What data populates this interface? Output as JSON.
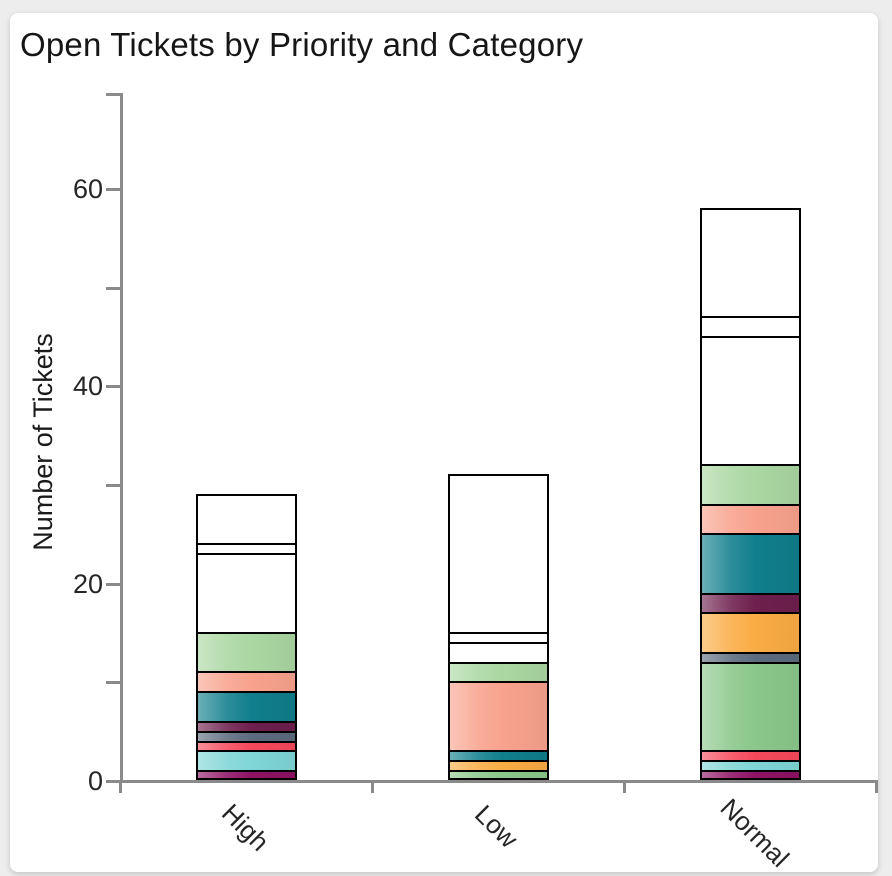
{
  "page": {
    "background_color": "#ededed",
    "card_background": "#ffffff",
    "axis_color": "#8a8a8a",
    "bar_border_color": "#000000",
    "text_color": "#1a1a1a"
  },
  "chart_data": {
    "type": "bar",
    "stacked": true,
    "title": "Open Tickets by Priority and Category",
    "xlabel": "",
    "ylabel": "Number of Tickets",
    "ylim": [
      0,
      68
    ],
    "yticks_major": [
      0,
      20,
      40,
      60
    ],
    "yticks_minor": [
      10,
      30,
      50
    ],
    "grid": false,
    "legend": "none",
    "categories": [
      "High",
      "Low",
      "Normal"
    ],
    "totals": [
      29,
      31,
      58
    ],
    "palette": {
      "dark-magenta": "#8E1263",
      "light-cyan": "#7FD5D6",
      "red": "#F5495B",
      "medium-green": "#8AC78A",
      "slate-gray": "#5C6C7E",
      "orange": "#FAAC44",
      "dark-maroon": "#6E1F4D",
      "teal": "#107E8C",
      "salmon": "#F8A28D",
      "light-green": "#AAD7A2",
      "white": "#FFFFFF"
    },
    "bars": [
      {
        "category": "High",
        "total": 29,
        "segments": [
          {
            "color": "dark-magenta",
            "value": 1
          },
          {
            "color": "light-cyan",
            "value": 2
          },
          {
            "color": "red",
            "value": 1
          },
          {
            "color": "slate-gray",
            "value": 1
          },
          {
            "color": "dark-maroon",
            "value": 1
          },
          {
            "color": "teal",
            "value": 3
          },
          {
            "color": "salmon",
            "value": 2
          },
          {
            "color": "light-green",
            "value": 4
          },
          {
            "color": "white",
            "value": 8
          },
          {
            "color": "white",
            "value": 1
          },
          {
            "color": "white",
            "value": 5
          }
        ]
      },
      {
        "category": "Low",
        "total": 31,
        "segments": [
          {
            "color": "medium-green",
            "value": 1
          },
          {
            "color": "orange",
            "value": 1
          },
          {
            "color": "teal",
            "value": 1
          },
          {
            "color": "salmon",
            "value": 7
          },
          {
            "color": "light-green",
            "value": 2
          },
          {
            "color": "white",
            "value": 2
          },
          {
            "color": "white",
            "value": 1
          },
          {
            "color": "white",
            "value": 16
          }
        ]
      },
      {
        "category": "Normal",
        "total": 58,
        "segments": [
          {
            "color": "dark-magenta",
            "value": 1
          },
          {
            "color": "light-cyan",
            "value": 1
          },
          {
            "color": "red",
            "value": 1
          },
          {
            "color": "medium-green",
            "value": 9
          },
          {
            "color": "slate-gray",
            "value": 1
          },
          {
            "color": "orange",
            "value": 4
          },
          {
            "color": "dark-maroon",
            "value": 2
          },
          {
            "color": "teal",
            "value": 6
          },
          {
            "color": "salmon",
            "value": 3
          },
          {
            "color": "light-green",
            "value": 4
          },
          {
            "color": "white",
            "value": 13
          },
          {
            "color": "white",
            "value": 2
          },
          {
            "color": "white",
            "value": 11
          }
        ]
      }
    ]
  }
}
